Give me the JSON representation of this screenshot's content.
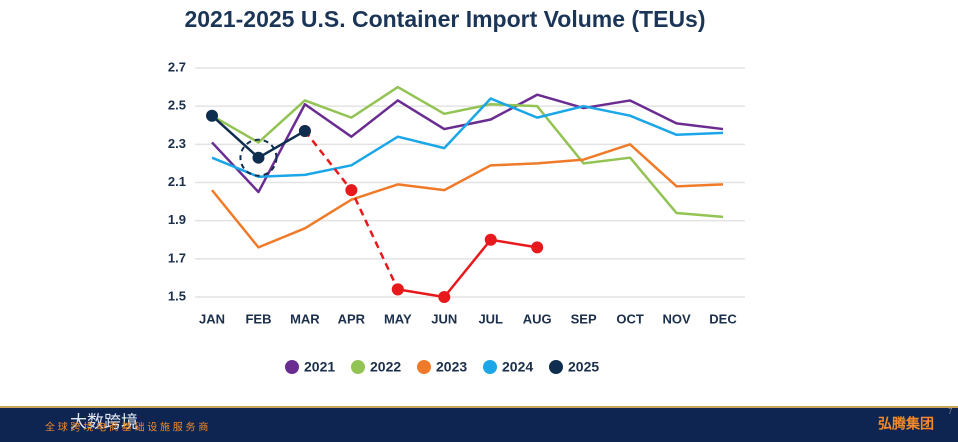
{
  "chart_data": {
    "type": "line",
    "title": "2021-2025 U.S. Container Import Volume (TEUs)",
    "categories": [
      "JAN",
      "FEB",
      "MAR",
      "APR",
      "MAY",
      "JUN",
      "JUL",
      "AUG",
      "SEP",
      "OCT",
      "NOV",
      "DEC"
    ],
    "ylim": [
      1.45,
      2.75
    ],
    "yticks": [
      1.5,
      1.7,
      1.9,
      2.1,
      2.3,
      2.5,
      2.7
    ],
    "grid": true,
    "series": [
      {
        "name": "2021",
        "color": "#6a2c91",
        "values": [
          2.31,
          2.05,
          2.51,
          2.34,
          2.53,
          2.38,
          2.43,
          2.56,
          2.49,
          2.53,
          2.41,
          2.38
        ]
      },
      {
        "name": "2022",
        "color": "#92c353",
        "values": [
          2.45,
          2.31,
          2.53,
          2.44,
          2.6,
          2.46,
          2.51,
          2.5,
          2.2,
          2.23,
          1.94,
          1.92
        ]
      },
      {
        "name": "2023",
        "color": "#ef7b2a",
        "values": [
          2.06,
          1.76,
          1.86,
          2.01,
          2.09,
          2.06,
          2.19,
          2.2,
          2.22,
          2.3,
          2.08,
          2.09
        ]
      },
      {
        "name": "2024",
        "color": "#1ba6e8",
        "values": [
          2.23,
          2.13,
          2.14,
          2.19,
          2.34,
          2.28,
          2.54,
          2.44,
          2.5,
          2.45,
          2.35,
          2.36
        ]
      },
      {
        "color": "#e8191c",
        "dashed": true,
        "markers": true,
        "values": [
          null,
          null,
          2.37,
          2.06,
          1.54,
          null,
          null,
          null,
          null,
          null,
          null,
          null
        ]
      },
      {
        "color": "#e8191c",
        "markers": true,
        "values": [
          null,
          null,
          null,
          null,
          1.54,
          1.5,
          1.8,
          1.76,
          null,
          null,
          null,
          null
        ]
      },
      {
        "name": "2025",
        "color": "#0f2d4f",
        "markers": true,
        "values": [
          2.45,
          2.23,
          2.37,
          null,
          null,
          null,
          null,
          null,
          null,
          null,
          null,
          null
        ]
      }
    ]
  },
  "footer": {
    "brand_left": "大数跨境",
    "tagline": "全 球 跨 境 电 商 基 础 设 施 服 务 商",
    "brand_right": "弘腾集团",
    "page_number": 7
  }
}
